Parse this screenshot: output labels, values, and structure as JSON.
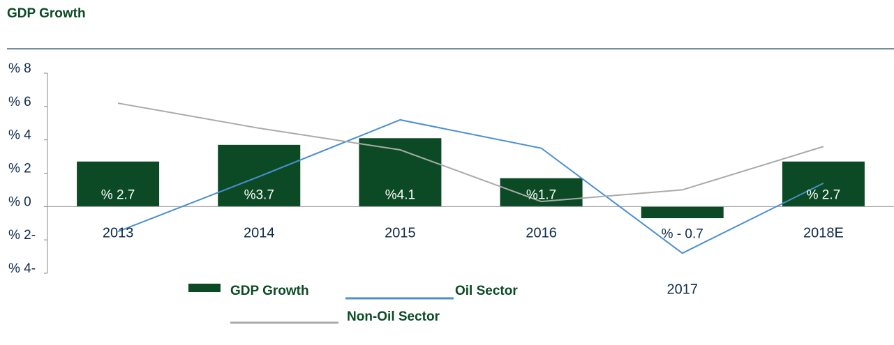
{
  "chart_data": {
    "type": "bar",
    "title": "GDP Growth",
    "categories": [
      "2013",
      "2014",
      "2015",
      "2016",
      "2017",
      "2018E"
    ],
    "series": [
      {
        "name": "GDP Growth",
        "type": "bar",
        "color": "#0b4a24",
        "values": [
          2.7,
          3.7,
          4.1,
          1.7,
          -0.7,
          2.7
        ],
        "value_labels": [
          "% 2.7",
          "%3.7",
          "%4.1",
          "%1.7",
          "% - 0.7",
          "% 2.7"
        ]
      },
      {
        "name": "Oil Sector",
        "type": "line",
        "color": "#4a8fd0",
        "values": [
          -1.5,
          1.8,
          5.2,
          3.5,
          -2.8,
          1.4
        ]
      },
      {
        "name": "Non-Oil Sector",
        "type": "line",
        "color": "#aaaaaa",
        "values": [
          6.2,
          4.7,
          3.4,
          0.3,
          1.0,
          3.6
        ]
      }
    ],
    "ylim": [
      -4,
      8
    ],
    "yticks": [
      {
        "value": -4,
        "label": "% 4-"
      },
      {
        "value": -2,
        "label": "% 2-"
      },
      {
        "value": 0,
        "label": "% 0"
      },
      {
        "value": 2,
        "label": "% 2"
      },
      {
        "value": 4,
        "label": "% 4"
      },
      {
        "value": 6,
        "label": "% 6"
      },
      {
        "value": 8,
        "label": "% 8"
      }
    ]
  }
}
